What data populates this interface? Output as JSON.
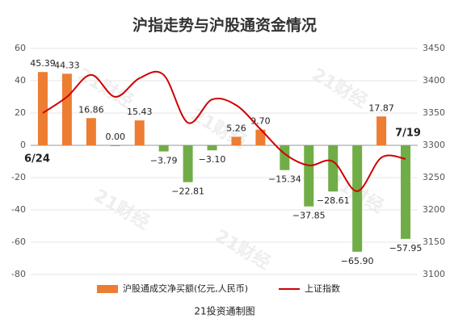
{
  "chart_data": {
    "type": "bar",
    "title": "沪指走势与沪股通资金情况",
    "source": "21投资通制图",
    "watermark": "21财经",
    "categories": [
      "6/24",
      null,
      null,
      null,
      null,
      null,
      null,
      null,
      null,
      null,
      null,
      null,
      null,
      null,
      null,
      "7/19"
    ],
    "series": [
      {
        "name": "沪股通成交净买额(亿元,人民币)",
        "type": "bar",
        "color": "#ed7d31",
        "negative_color": "#70ad47",
        "values": [
          45.39,
          44.33,
          16.86,
          0.0,
          15.43,
          -3.79,
          -22.81,
          -3.1,
          5.26,
          9.7,
          -15.34,
          -37.85,
          -28.61,
          -65.9,
          17.87,
          -57.95
        ],
        "value_labels": [
          "45.39",
          "44.33",
          "16.86",
          "0.00",
          "15.43",
          "−3.79",
          "−22.81",
          "−3.10",
          "5.26",
          "9.70",
          "−15.34",
          "−37.85",
          "−28.61",
          "−65.90",
          "17.87",
          "−57.95"
        ]
      },
      {
        "name": "上证指数",
        "type": "line",
        "color": "#d00000",
        "axis": "y2",
        "values": [
          3350,
          3375,
          3409,
          3375,
          3404,
          3409,
          3335,
          3371,
          3362,
          3325,
          3287,
          3269,
          3275,
          3229,
          3281,
          3279
        ]
      }
    ],
    "ylim": [
      -80,
      60
    ],
    "yticks": [
      60,
      40,
      20,
      0,
      -20,
      -40,
      -60,
      -80
    ],
    "y2lim": [
      3100,
      3450
    ],
    "y2ticks": [
      3450,
      3400,
      3350,
      3300,
      3250,
      3200,
      3150,
      3100
    ]
  }
}
